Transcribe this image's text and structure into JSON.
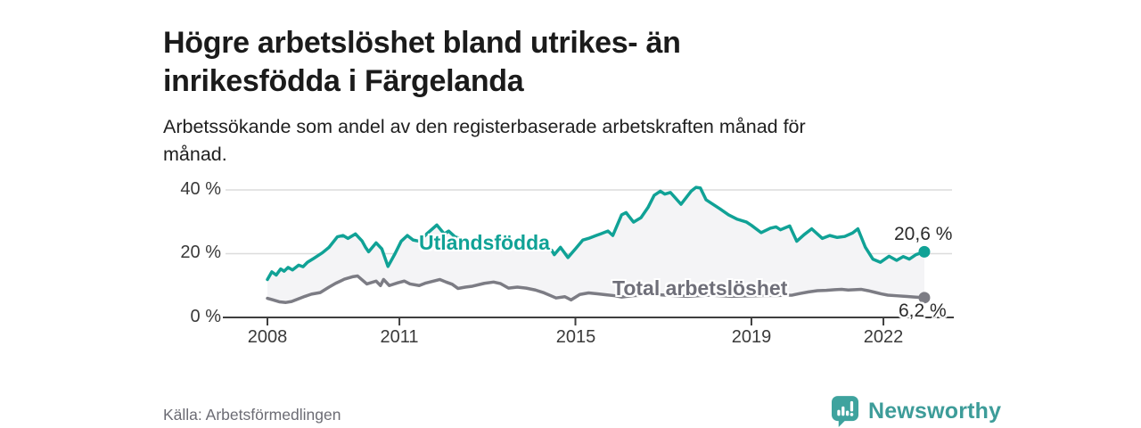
{
  "header": {
    "title": "Högre arbetslöshet bland utrikes- än inrikesfödda i Färgelanda",
    "subtitle": "Arbetssökande som andel av den registerbaserade arbetskraften månad för månad."
  },
  "footer": {
    "source": "Källa: Arbetsförmedlingen",
    "brand": "Newsworthy",
    "logo_icon": "bar-chart-speech-bubble-icon"
  },
  "colors": {
    "accent_teal": "#10a296",
    "logo_teal": "#3ea39e",
    "gray_series": "#7c7c84",
    "gray_label": "#6f6f79",
    "axis_text": "#3a3a3a",
    "grid": "#dcdcdc",
    "fill_between": "#f4f4f6",
    "title_text": "#1b1b1b",
    "source_text": "#6c6c74"
  },
  "chart_data": {
    "type": "line",
    "title": "Högre arbetslöshet bland utrikes- än inrikesfödda i Färgelanda",
    "subtitle": "Arbetssökande som andel av den registerbaserade arbetskraften månad för månad.",
    "xlabel": "",
    "ylabel": "",
    "xlim": [
      2007.1,
      2023.5
    ],
    "ylim": [
      0,
      43
    ],
    "grid": "horizontal",
    "legend": "inline-labels",
    "yticks": [
      {
        "label": "0 %",
        "value": 0
      },
      {
        "label": "20 %",
        "value": 20
      },
      {
        "label": "40 %",
        "value": 40
      }
    ],
    "xticks": [
      {
        "label": "2008",
        "value": 2008
      },
      {
        "label": "2011",
        "value": 2011
      },
      {
        "label": "2015",
        "value": 2015
      },
      {
        "label": "2019",
        "value": 2019
      },
      {
        "label": "2022",
        "value": 2022
      }
    ],
    "style": {
      "grid_color": "#dcdcdc",
      "axis_color": "#3f3f3f",
      "fill_between": "#f4f4f6"
    },
    "series": [
      {
        "name": "Utlandsfödda",
        "color": "#10a296",
        "end_label": "20,6 %",
        "end_value": 20.6,
        "points": [
          [
            2008.0,
            11.9
          ],
          [
            2008.1,
            14.3
          ],
          [
            2008.2,
            13.3
          ],
          [
            2008.3,
            15.2
          ],
          [
            2008.38,
            14.5
          ],
          [
            2008.47,
            15.7
          ],
          [
            2008.57,
            14.9
          ],
          [
            2008.71,
            16.4
          ],
          [
            2008.81,
            15.9
          ],
          [
            2008.91,
            17.3
          ],
          [
            2009.05,
            18.5
          ],
          [
            2009.25,
            20.3
          ],
          [
            2009.4,
            22.0
          ],
          [
            2009.59,
            25.3
          ],
          [
            2009.72,
            25.7
          ],
          [
            2009.83,
            24.8
          ],
          [
            2010.0,
            26.2
          ],
          [
            2010.15,
            24.0
          ],
          [
            2010.23,
            22.0
          ],
          [
            2010.3,
            20.6
          ],
          [
            2010.47,
            23.4
          ],
          [
            2010.6,
            21.5
          ],
          [
            2010.74,
            16.0
          ],
          [
            2010.9,
            20.0
          ],
          [
            2011.04,
            23.9
          ],
          [
            2011.18,
            25.7
          ],
          [
            2011.31,
            24.3
          ],
          [
            2011.45,
            23.9
          ],
          [
            2011.62,
            26.2
          ],
          [
            2011.85,
            29.0
          ],
          [
            2012.02,
            26.2
          ],
          [
            2012.12,
            27.1
          ],
          [
            2012.26,
            25.3
          ],
          [
            2012.5,
            24.2
          ],
          [
            2012.75,
            23.6
          ],
          [
            2013.0,
            23.9
          ],
          [
            2013.25,
            23.2
          ],
          [
            2013.5,
            22.6
          ],
          [
            2013.75,
            22.1
          ],
          [
            2014.0,
            22.4
          ],
          [
            2014.25,
            21.8
          ],
          [
            2014.46,
            21.1
          ],
          [
            2014.52,
            19.7
          ],
          [
            2014.66,
            22.0
          ],
          [
            2014.83,
            18.8
          ],
          [
            2015.0,
            21.5
          ],
          [
            2015.17,
            24.3
          ],
          [
            2015.3,
            24.8
          ],
          [
            2015.47,
            25.7
          ],
          [
            2015.57,
            26.2
          ],
          [
            2015.74,
            27.1
          ],
          [
            2015.85,
            25.7
          ],
          [
            2016.05,
            32.2
          ],
          [
            2016.15,
            32.9
          ],
          [
            2016.32,
            29.9
          ],
          [
            2016.49,
            31.3
          ],
          [
            2016.65,
            34.5
          ],
          [
            2016.79,
            38.3
          ],
          [
            2016.93,
            39.6
          ],
          [
            2017.03,
            38.7
          ],
          [
            2017.16,
            39.2
          ],
          [
            2017.4,
            35.5
          ],
          [
            2017.63,
            39.6
          ],
          [
            2017.74,
            40.8
          ],
          [
            2017.84,
            40.6
          ],
          [
            2017.97,
            36.9
          ],
          [
            2018.07,
            36.0
          ],
          [
            2018.28,
            34.1
          ],
          [
            2018.48,
            32.2
          ],
          [
            2018.68,
            30.8
          ],
          [
            2018.89,
            29.9
          ],
          [
            2019.0,
            28.9
          ],
          [
            2019.22,
            26.6
          ],
          [
            2019.43,
            28.0
          ],
          [
            2019.56,
            28.4
          ],
          [
            2019.66,
            27.5
          ],
          [
            2019.87,
            28.7
          ],
          [
            2020.03,
            23.9
          ],
          [
            2020.2,
            26.0
          ],
          [
            2020.37,
            27.8
          ],
          [
            2020.61,
            24.8
          ],
          [
            2020.78,
            25.7
          ],
          [
            2020.95,
            25.1
          ],
          [
            2021.12,
            25.4
          ],
          [
            2021.3,
            26.5
          ],
          [
            2021.42,
            27.8
          ],
          [
            2021.59,
            22.0
          ],
          [
            2021.76,
            18.3
          ],
          [
            2021.93,
            17.3
          ],
          [
            2022.13,
            19.2
          ],
          [
            2022.3,
            17.9
          ],
          [
            2022.45,
            19.1
          ],
          [
            2022.59,
            18.3
          ],
          [
            2022.74,
            19.7
          ],
          [
            2022.93,
            20.6
          ]
        ]
      },
      {
        "name": "Total arbetslöshet",
        "color": "#7c7c84",
        "end_label": "6,2 %",
        "end_value": 6.2,
        "points": [
          [
            2008.0,
            6.0
          ],
          [
            2008.1,
            5.6
          ],
          [
            2008.27,
            4.9
          ],
          [
            2008.42,
            4.7
          ],
          [
            2008.55,
            5.0
          ],
          [
            2008.7,
            5.8
          ],
          [
            2008.85,
            6.6
          ],
          [
            2009.0,
            7.3
          ],
          [
            2009.2,
            7.8
          ],
          [
            2009.4,
            9.5
          ],
          [
            2009.55,
            10.7
          ],
          [
            2009.75,
            12.0
          ],
          [
            2009.95,
            12.8
          ],
          [
            2010.05,
            13.0
          ],
          [
            2010.26,
            10.5
          ],
          [
            2010.47,
            11.4
          ],
          [
            2010.57,
            10.0
          ],
          [
            2010.64,
            11.9
          ],
          [
            2010.77,
            10.0
          ],
          [
            2010.97,
            10.9
          ],
          [
            2011.11,
            11.4
          ],
          [
            2011.24,
            10.5
          ],
          [
            2011.45,
            10.0
          ],
          [
            2011.6,
            10.8
          ],
          [
            2011.75,
            11.3
          ],
          [
            2011.92,
            11.9
          ],
          [
            2012.06,
            11.1
          ],
          [
            2012.2,
            10.4
          ],
          [
            2012.33,
            9.1
          ],
          [
            2012.5,
            9.5
          ],
          [
            2012.66,
            9.8
          ],
          [
            2012.93,
            10.7
          ],
          [
            2013.14,
            11.1
          ],
          [
            2013.3,
            10.6
          ],
          [
            2013.48,
            9.2
          ],
          [
            2013.68,
            9.5
          ],
          [
            2013.88,
            9.2
          ],
          [
            2014.09,
            8.6
          ],
          [
            2014.29,
            7.7
          ],
          [
            2014.46,
            6.7
          ],
          [
            2014.56,
            6.1
          ],
          [
            2014.76,
            6.5
          ],
          [
            2014.9,
            5.5
          ],
          [
            2015.1,
            7.2
          ],
          [
            2015.3,
            7.7
          ],
          [
            2015.5,
            7.4
          ],
          [
            2015.7,
            7.1
          ],
          [
            2015.9,
            6.8
          ],
          [
            2016.05,
            6.4
          ],
          [
            2016.3,
            6.8
          ],
          [
            2016.55,
            7.0
          ],
          [
            2016.8,
            7.2
          ],
          [
            2017.05,
            7.0
          ],
          [
            2017.3,
            6.8
          ],
          [
            2017.55,
            6.6
          ],
          [
            2017.8,
            6.8
          ],
          [
            2018.05,
            7.0
          ],
          [
            2018.3,
            6.8
          ],
          [
            2018.55,
            6.6
          ],
          [
            2018.8,
            6.7
          ],
          [
            2019.05,
            6.8
          ],
          [
            2019.3,
            6.9
          ],
          [
            2019.6,
            6.9
          ],
          [
            2019.93,
            7.0
          ],
          [
            2020.1,
            7.5
          ],
          [
            2020.3,
            8.0
          ],
          [
            2020.5,
            8.4
          ],
          [
            2020.7,
            8.5
          ],
          [
            2020.9,
            8.7
          ],
          [
            2021.05,
            8.8
          ],
          [
            2021.2,
            8.6
          ],
          [
            2021.35,
            8.7
          ],
          [
            2021.5,
            8.8
          ],
          [
            2021.65,
            8.4
          ],
          [
            2021.8,
            7.9
          ],
          [
            2021.95,
            7.4
          ],
          [
            2022.1,
            7.0
          ],
          [
            2022.3,
            6.8
          ],
          [
            2022.5,
            6.6
          ],
          [
            2022.7,
            6.4
          ],
          [
            2022.93,
            6.2
          ]
        ]
      }
    ]
  }
}
